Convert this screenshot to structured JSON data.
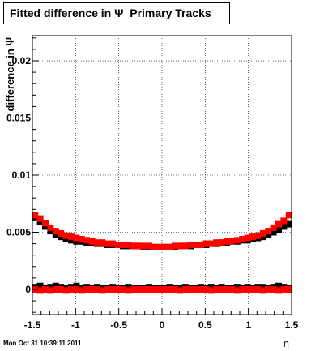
{
  "title": "Fitted difference in Ψ  Primary Tracks",
  "timestamp": "Mon Oct 31 10:39:11 2011",
  "chart_data": {
    "type": "scatter",
    "title": "Fitted difference in Ψ  Primary Tracks",
    "xlabel": "η",
    "ylabel": "difference in Ψ",
    "xlim": [
      -1.5,
      1.5
    ],
    "ylim": [
      -0.0022,
      0.0222
    ],
    "grid": true,
    "x_ticks": [
      "-1.5",
      "-1",
      "-0.5",
      "0",
      "0.5",
      "1",
      "1.5"
    ],
    "x_tick_values": [
      -1.5,
      -1,
      -0.5,
      0,
      0.5,
      1,
      1.5
    ],
    "y_ticks": [
      "0",
      "0.005",
      "0.01",
      "0.015",
      "0.02"
    ],
    "y_tick_values": [
      0,
      0.005,
      0.01,
      0.015,
      0.02
    ],
    "series": [
      {
        "color": "#000000",
        "x": [
          -1.47,
          -1.41,
          -1.35,
          -1.29,
          -1.23,
          -1.17,
          -1.11,
          -1.05,
          -0.99,
          -0.93,
          -0.87,
          -0.81,
          -0.75,
          -0.69,
          -0.63,
          -0.57,
          -0.51,
          -0.45,
          -0.39,
          -0.33,
          -0.27,
          -0.21,
          -0.15,
          -0.09,
          -0.03,
          0.03,
          0.09,
          0.15,
          0.21,
          0.27,
          0.33,
          0.39,
          0.45,
          0.51,
          0.57,
          0.63,
          0.69,
          0.75,
          0.81,
          0.87,
          0.93,
          0.99,
          1.05,
          1.11,
          1.17,
          1.23,
          1.29,
          1.35,
          1.41,
          1.47
        ],
        "values": [
          0.0063,
          0.0059,
          0.0055,
          0.0051,
          0.0048,
          0.0046,
          0.0044,
          0.0043,
          0.0042,
          0.0042,
          0.0041,
          0.0041,
          0.004,
          0.004,
          0.0039,
          0.0039,
          0.0039,
          0.0038,
          0.0038,
          0.0038,
          0.0038,
          0.0037,
          0.0037,
          0.0037,
          0.0037,
          0.0037,
          0.0037,
          0.0037,
          0.0038,
          0.0038,
          0.0038,
          0.0039,
          0.0039,
          0.0039,
          0.004,
          0.004,
          0.0041,
          0.0041,
          0.0042,
          0.0042,
          0.0043,
          0.0043,
          0.0044,
          0.0045,
          0.0046,
          0.0048,
          0.005,
          0.0052,
          0.0055,
          0.0057
        ]
      },
      {
        "color": "#ff0000",
        "x": [
          -1.47,
          -1.41,
          -1.35,
          -1.29,
          -1.23,
          -1.17,
          -1.11,
          -1.05,
          -0.99,
          -0.93,
          -0.87,
          -0.81,
          -0.75,
          -0.69,
          -0.63,
          -0.57,
          -0.51,
          -0.45,
          -0.39,
          -0.33,
          -0.27,
          -0.21,
          -0.15,
          -0.09,
          -0.03,
          0.03,
          0.09,
          0.15,
          0.21,
          0.27,
          0.33,
          0.39,
          0.45,
          0.51,
          0.57,
          0.63,
          0.69,
          0.75,
          0.81,
          0.87,
          0.93,
          0.99,
          1.05,
          1.11,
          1.17,
          1.23,
          1.29,
          1.35,
          1.41,
          1.47
        ],
        "values": [
          0.0065,
          0.0062,
          0.0058,
          0.0054,
          0.0051,
          0.0049,
          0.0047,
          0.0046,
          0.0045,
          0.0044,
          0.0043,
          0.0042,
          0.0041,
          0.0041,
          0.004,
          0.004,
          0.0039,
          0.0039,
          0.0039,
          0.0038,
          0.0038,
          0.0038,
          0.0038,
          0.0037,
          0.0037,
          0.0037,
          0.0037,
          0.0038,
          0.0038,
          0.0038,
          0.0039,
          0.0039,
          0.0039,
          0.004,
          0.004,
          0.0041,
          0.0041,
          0.0042,
          0.0042,
          0.0043,
          0.0044,
          0.0045,
          0.0046,
          0.0047,
          0.0049,
          0.0051,
          0.0054,
          0.0057,
          0.006,
          0.0065
        ]
      },
      {
        "color": "#000000",
        "x": [
          -1.47,
          -1.41,
          -1.35,
          -1.29,
          -1.23,
          -1.17,
          -1.11,
          -1.05,
          -0.99,
          -0.93,
          -0.87,
          -0.81,
          -0.75,
          -0.69,
          -0.63,
          -0.57,
          -0.51,
          -0.45,
          -0.39,
          -0.33,
          -0.27,
          -0.21,
          -0.15,
          -0.09,
          -0.03,
          0.03,
          0.09,
          0.15,
          0.21,
          0.27,
          0.33,
          0.39,
          0.45,
          0.51,
          0.57,
          0.63,
          0.69,
          0.75,
          0.81,
          0.87,
          0.93,
          0.99,
          1.05,
          1.11,
          1.17,
          1.23,
          1.29,
          1.35,
          1.41,
          1.47
        ],
        "values": [
          0.0002,
          0.0003,
          0.0001,
          0.0002,
          0.0003,
          0.0002,
          0.0001,
          0.0002,
          0.0003,
          0.0001,
          0.0002,
          0.0001,
          0.0002,
          0.0001,
          0.0001,
          0.0002,
          0.0001,
          0.0001,
          0.0002,
          0.0001,
          0.0001,
          0.0001,
          0.0002,
          0.0001,
          0.0001,
          0.0001,
          0.0002,
          0.0001,
          0.0001,
          0.0002,
          0.0001,
          0.0001,
          0.0002,
          0.0001,
          0.0002,
          0.0001,
          0.0002,
          0.0001,
          0.0001,
          0.0002,
          0.0001,
          0.0002,
          0.0001,
          0.0002,
          0.0002,
          0.0001,
          0.0002,
          0.0003,
          0.0002,
          0.0001
        ]
      },
      {
        "color": "#ff0000",
        "x": [
          -1.47,
          -1.41,
          -1.35,
          -1.29,
          -1.23,
          -1.17,
          -1.11,
          -1.05,
          -0.99,
          -0.93,
          -0.87,
          -0.81,
          -0.75,
          -0.69,
          -0.63,
          -0.57,
          -0.51,
          -0.45,
          -0.39,
          -0.33,
          -0.27,
          -0.21,
          -0.15,
          -0.09,
          -0.03,
          0.03,
          0.09,
          0.15,
          0.21,
          0.27,
          0.33,
          0.39,
          0.45,
          0.51,
          0.57,
          0.63,
          0.69,
          0.75,
          0.81,
          0.87,
          0.93,
          0.99,
          1.05,
          1.11,
          1.17,
          1.23,
          1.29,
          1.35,
          1.41,
          1.47
        ],
        "values": [
          0.0,
          -0.0001,
          0.0,
          -0.0001,
          0.0,
          0.0,
          -0.0001,
          0.0,
          0.0,
          -0.0001,
          0.0,
          0.0,
          0.0,
          -0.0001,
          0.0,
          0.0,
          0.0,
          0.0,
          -0.0001,
          0.0,
          0.0,
          0.0,
          0.0,
          0.0,
          0.0,
          0.0,
          0.0,
          0.0,
          -0.0001,
          0.0,
          0.0,
          0.0,
          0.0,
          0.0,
          -0.0001,
          0.0,
          0.0,
          0.0,
          0.0,
          -0.0001,
          0.0,
          0.0,
          0.0,
          0.0,
          -0.0001,
          0.0,
          0.0,
          -0.0001,
          0.0,
          0.0
        ]
      }
    ]
  }
}
